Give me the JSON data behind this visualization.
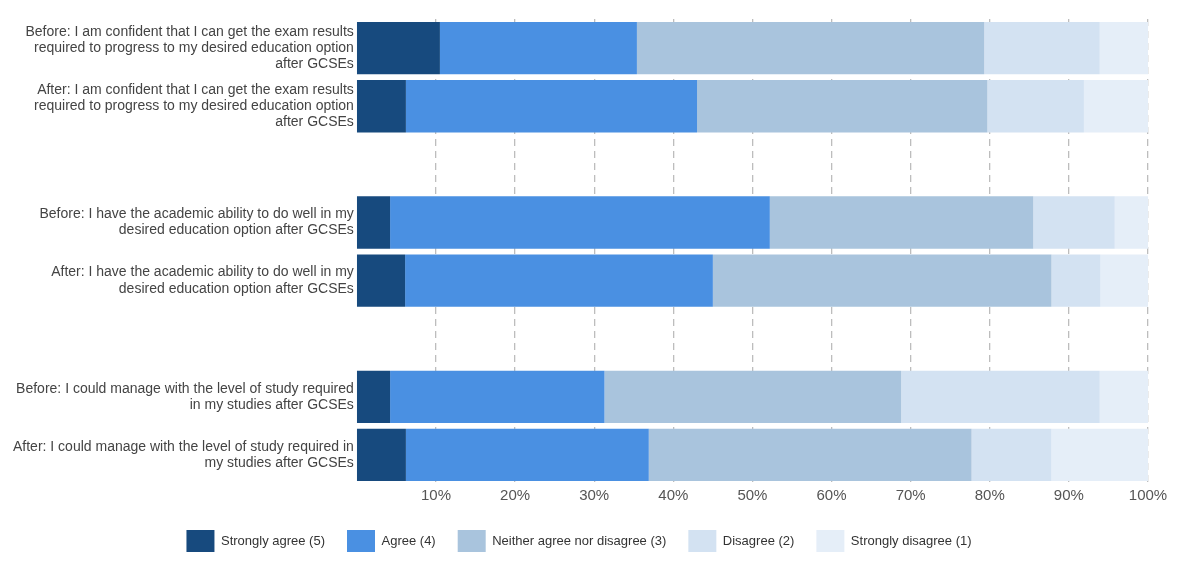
{
  "chart_data": {
    "type": "bar",
    "orientation": "horizontal",
    "stacked": true,
    "categories": [
      "Before: I am confident that I can get the exam results required to progress to my desired education option after GCSEs",
      "After: I am confident that I can get the exam results required to progress to my desired education option after GCSEs",
      null,
      "Before: I have the academic ability to do well in my desired education option after GCSEs",
      "After: I have the academic ability to do well in my desired education option after GCSEs",
      null,
      "Before: I could manage with the level of study required in my studies after GCSEs",
      "After: I could manage with the level of study required in my studies after GCSEs"
    ],
    "series": [
      {
        "name": "Strongly agree (5)",
        "color": "#174a7e",
        "values": [
          10.5,
          6.2,
          null,
          4.2,
          6.1,
          null,
          4.2,
          6.2
        ]
      },
      {
        "name": "Agree (4)",
        "color": "#4a90e2",
        "values": [
          24.9,
          36.8,
          null,
          48.0,
          38.9,
          null,
          27.1,
          30.7
        ]
      },
      {
        "name": "Neither agree nor disagree (3)",
        "color": "#a9c4dd",
        "values": [
          43.9,
          36.7,
          null,
          33.3,
          42.8,
          null,
          37.5,
          40.8
        ]
      },
      {
        "name": "Disagree (2)",
        "color": "#d3e2f2",
        "values": [
          14.6,
          12.2,
          null,
          10.3,
          6.2,
          null,
          25.1,
          10.1
        ]
      },
      {
        "name": "Strongly disagree (1)",
        "color": "#e5eef8",
        "values": [
          6.1,
          8.1,
          null,
          4.2,
          6.0,
          null,
          6.1,
          12.2
        ]
      }
    ],
    "xlim": [
      0,
      100
    ],
    "xticks": [
      {
        "value": 10,
        "label": "10%"
      },
      {
        "value": 20,
        "label": "20%"
      },
      {
        "value": 30,
        "label": "30%"
      },
      {
        "value": 40,
        "label": "40%"
      },
      {
        "value": 50,
        "label": "50%"
      },
      {
        "value": 60,
        "label": "60%"
      },
      {
        "value": 70,
        "label": "70%"
      },
      {
        "value": 80,
        "label": "80%"
      },
      {
        "value": 90,
        "label": "90%"
      },
      {
        "value": 100,
        "label": "100%"
      }
    ],
    "grid": "x",
    "legend": "bottom"
  }
}
